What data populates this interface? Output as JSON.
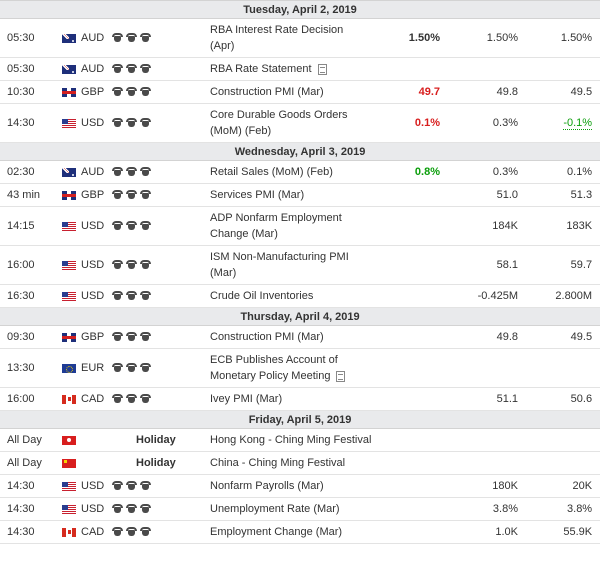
{
  "days": [
    {
      "header": "Tuesday, April 2, 2019",
      "rows": [
        {
          "time": "05:30",
          "flag": "au",
          "cur": "AUD",
          "bulls": 3,
          "event": [
            "RBA Interest Rate Decision",
            "(Apr)"
          ],
          "actual": "1.50%",
          "actual_style": "bold",
          "forecast": "1.50%",
          "previous": "1.50%",
          "prev_style": ""
        },
        {
          "time": "05:30",
          "flag": "au",
          "cur": "AUD",
          "bulls": 3,
          "event": [
            "RBA Rate Statement"
          ],
          "doc": true,
          "actual": "",
          "forecast": "",
          "previous": ""
        },
        {
          "time": "10:30",
          "flag": "gb",
          "cur": "GBP",
          "bulls": 3,
          "event": [
            "Construction PMI (Mar)"
          ],
          "actual": "49.7",
          "actual_style": "red",
          "forecast": "49.8",
          "previous": "49.5",
          "prev_style": ""
        },
        {
          "time": "14:30",
          "flag": "us",
          "cur": "USD",
          "bulls": 3,
          "event": [
            "Core Durable Goods Orders",
            "(MoM) (Feb)"
          ],
          "actual": "0.1%",
          "actual_style": "red",
          "forecast": "0.3%",
          "previous": "-0.1%",
          "prev_style": "green-u"
        }
      ]
    },
    {
      "header": "Wednesday, April 3, 2019",
      "rows": [
        {
          "time": "02:30",
          "flag": "au",
          "cur": "AUD",
          "bulls": 3,
          "event": [
            "Retail Sales (MoM) (Feb)"
          ],
          "actual": "0.8%",
          "actual_style": "green",
          "forecast": "0.3%",
          "previous": "0.1%",
          "prev_style": ""
        },
        {
          "time": "43 min",
          "flag": "gb",
          "cur": "GBP",
          "bulls": 3,
          "event": [
            "Services PMI (Mar)"
          ],
          "actual": "",
          "forecast": "51.0",
          "previous": "51.3",
          "prev_style": ""
        },
        {
          "time": "14:15",
          "flag": "us",
          "cur": "USD",
          "bulls": 3,
          "event": [
            "ADP Nonfarm Employment",
            "Change (Mar)"
          ],
          "actual": "",
          "forecast": "184K",
          "previous": "183K",
          "prev_style": ""
        },
        {
          "time": "16:00",
          "flag": "us",
          "cur": "USD",
          "bulls": 3,
          "event": [
            "ISM Non-Manufacturing PMI",
            "(Mar)"
          ],
          "actual": "",
          "forecast": "58.1",
          "previous": "59.7",
          "prev_style": ""
        },
        {
          "time": "16:30",
          "flag": "us",
          "cur": "USD",
          "bulls": 3,
          "event": [
            "Crude Oil Inventories"
          ],
          "actual": "",
          "forecast": "-0.425M",
          "previous": "2.800M",
          "prev_style": ""
        }
      ]
    },
    {
      "header": "Thursday, April 4, 2019",
      "rows": [
        {
          "time": "09:30",
          "flag": "gb",
          "cur": "GBP",
          "bulls": 3,
          "event": [
            "Construction PMI (Mar)"
          ],
          "actual": "",
          "forecast": "49.8",
          "previous": "49.5",
          "prev_style": ""
        },
        {
          "time": "13:30",
          "flag": "eu",
          "cur": "EUR",
          "bulls": 3,
          "event": [
            "ECB Publishes Account of",
            "Monetary Policy Meeting"
          ],
          "doc": true,
          "actual": "",
          "forecast": "",
          "previous": ""
        },
        {
          "time": "16:00",
          "flag": "ca",
          "cur": "CAD",
          "bulls": 3,
          "event": [
            "Ivey PMI (Mar)"
          ],
          "actual": "",
          "forecast": "51.1",
          "previous": "50.6",
          "prev_style": ""
        }
      ]
    },
    {
      "header": "Friday, April 5, 2019",
      "rows": [
        {
          "time": "All Day",
          "flag": "hk",
          "cur": "",
          "holiday": "Holiday",
          "event": [
            "Hong Kong - Ching Ming Festival"
          ],
          "actual": "",
          "forecast": "",
          "previous": ""
        },
        {
          "time": "All Day",
          "flag": "cn",
          "cur": "",
          "holiday": "Holiday",
          "event": [
            "China - Ching Ming Festival"
          ],
          "actual": "",
          "forecast": "",
          "previous": ""
        },
        {
          "time": "14:30",
          "flag": "us",
          "cur": "USD",
          "bulls": 3,
          "event": [
            "Nonfarm Payrolls (Mar)"
          ],
          "actual": "",
          "forecast": "180K",
          "previous": "20K",
          "prev_style": ""
        },
        {
          "time": "14:30",
          "flag": "us",
          "cur": "USD",
          "bulls": 3,
          "event": [
            "Unemployment Rate (Mar)"
          ],
          "actual": "",
          "forecast": "3.8%",
          "previous": "3.8%",
          "prev_style": ""
        },
        {
          "time": "14:30",
          "flag": "ca",
          "cur": "CAD",
          "bulls": 3,
          "event": [
            "Employment Change (Mar)"
          ],
          "actual": "",
          "forecast": "1.0K",
          "previous": "55.9K",
          "prev_style": ""
        }
      ]
    }
  ],
  "colors": {
    "negative": "#d81e1e",
    "positive": "#0a9e0a",
    "day_header_bg": "#e9eaec"
  },
  "icons": {
    "importance": "bull-icon",
    "speech": "document-icon"
  }
}
